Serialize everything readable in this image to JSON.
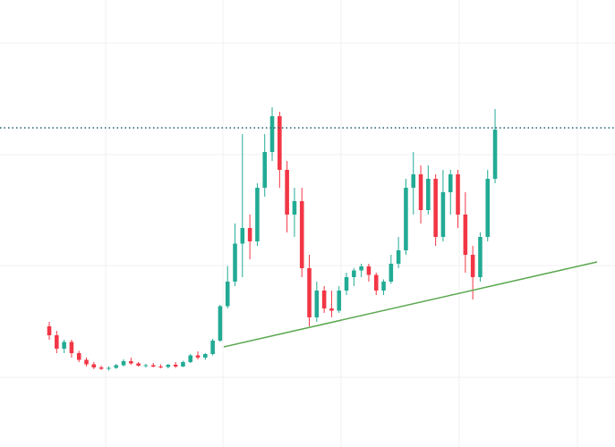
{
  "chart_data": {
    "type": "candlestick",
    "x": [
      0,
      1,
      2,
      3,
      4,
      5,
      6,
      7,
      8,
      9,
      10,
      11,
      12,
      13,
      14,
      15,
      16,
      17,
      18,
      19,
      20,
      21,
      22,
      23,
      24,
      25,
      26,
      27,
      28,
      29,
      30,
      31,
      32,
      33,
      34,
      35,
      36,
      37,
      38,
      39,
      40,
      41,
      42,
      43,
      44,
      45,
      46,
      47,
      48,
      49,
      50,
      51,
      52,
      53,
      54,
      55,
      56,
      57,
      58,
      59,
      60
    ],
    "open": [
      27,
      25,
      22,
      23.5,
      21,
      19.5,
      18.5,
      17.8,
      17.5,
      17.7,
      18.3,
      19.2,
      18.7,
      18.2,
      18.3,
      18,
      17.9,
      18.4,
      18,
      19,
      20.5,
      20,
      20.8,
      23.8,
      31.5,
      37,
      45.5,
      49,
      46,
      58,
      66,
      74,
      62,
      52,
      55,
      40,
      29,
      35,
      31,
      30.5,
      35,
      38,
      39.5,
      40.4,
      38.5,
      35,
      37,
      41,
      44,
      58,
      61,
      53,
      60,
      47,
      57,
      61,
      52,
      43,
      38,
      47,
      60
    ],
    "high": [
      28,
      26,
      24,
      24,
      21.5,
      20,
      19,
      18.2,
      18,
      18.6,
      19.6,
      20,
      19,
      18.6,
      18.8,
      18.5,
      18.6,
      19,
      19.3,
      20.8,
      21.4,
      21,
      24.2,
      31.8,
      40.5,
      50,
      70,
      52,
      59,
      70,
      76,
      75,
      64,
      58,
      58,
      43,
      37,
      36,
      35,
      36,
      39,
      40,
      41,
      41,
      39,
      37.5,
      43,
      47,
      60,
      66,
      63,
      63,
      61,
      62,
      62,
      62,
      57,
      45,
      48,
      62,
      75.6
    ],
    "low": [
      24,
      21,
      21,
      20,
      19,
      18,
      17.4,
      17.2,
      17.1,
      17.5,
      18,
      18.4,
      18,
      17.8,
      17.8,
      17.6,
      17.6,
      17.7,
      17.9,
      18.8,
      19.6,
      19.5,
      20.5,
      23.5,
      31,
      36,
      38,
      42,
      45,
      56,
      64,
      58,
      48,
      47,
      38,
      27,
      28,
      30,
      29,
      30,
      34,
      36,
      38,
      37,
      34,
      34,
      36.5,
      40,
      43,
      52,
      50,
      52,
      45,
      46,
      52,
      49,
      39,
      33,
      37,
      46,
      59
    ],
    "close": [
      25,
      22,
      23.5,
      21,
      19.5,
      18.5,
      17.8,
      17.5,
      17.7,
      18.3,
      19.2,
      18.7,
      18.2,
      18.3,
      18,
      17.9,
      18.4,
      18,
      19,
      20.5,
      20,
      20.8,
      23.8,
      31.5,
      37,
      45.5,
      49,
      46,
      58,
      66,
      74,
      62,
      52,
      55,
      40,
      29,
      35,
      31,
      30.5,
      35,
      38,
      39.5,
      40.4,
      38.5,
      35,
      37,
      41,
      44,
      58,
      61,
      53,
      60,
      47,
      57,
      61,
      52,
      43,
      38,
      47,
      60,
      71
    ],
    "up_color": "#22ab94",
    "down_color": "#f23645",
    "xlim": [
      -6.63,
      76.14
    ],
    "ylim": [
      0,
      100
    ],
    "xticks": [
      7.59,
      23.37,
      39.28,
      55.18,
      71.08
    ],
    "yticks": [
      15.6,
      40.6,
      65.4,
      90.4
    ],
    "grid": true,
    "trend_line": {
      "x": [
        23.49,
        73.73
      ],
      "y": [
        22.4,
        41.4
      ],
      "color": "#5aa84f"
    },
    "price_line": {
      "value": 71.4,
      "color": "#1f5f6f"
    }
  }
}
